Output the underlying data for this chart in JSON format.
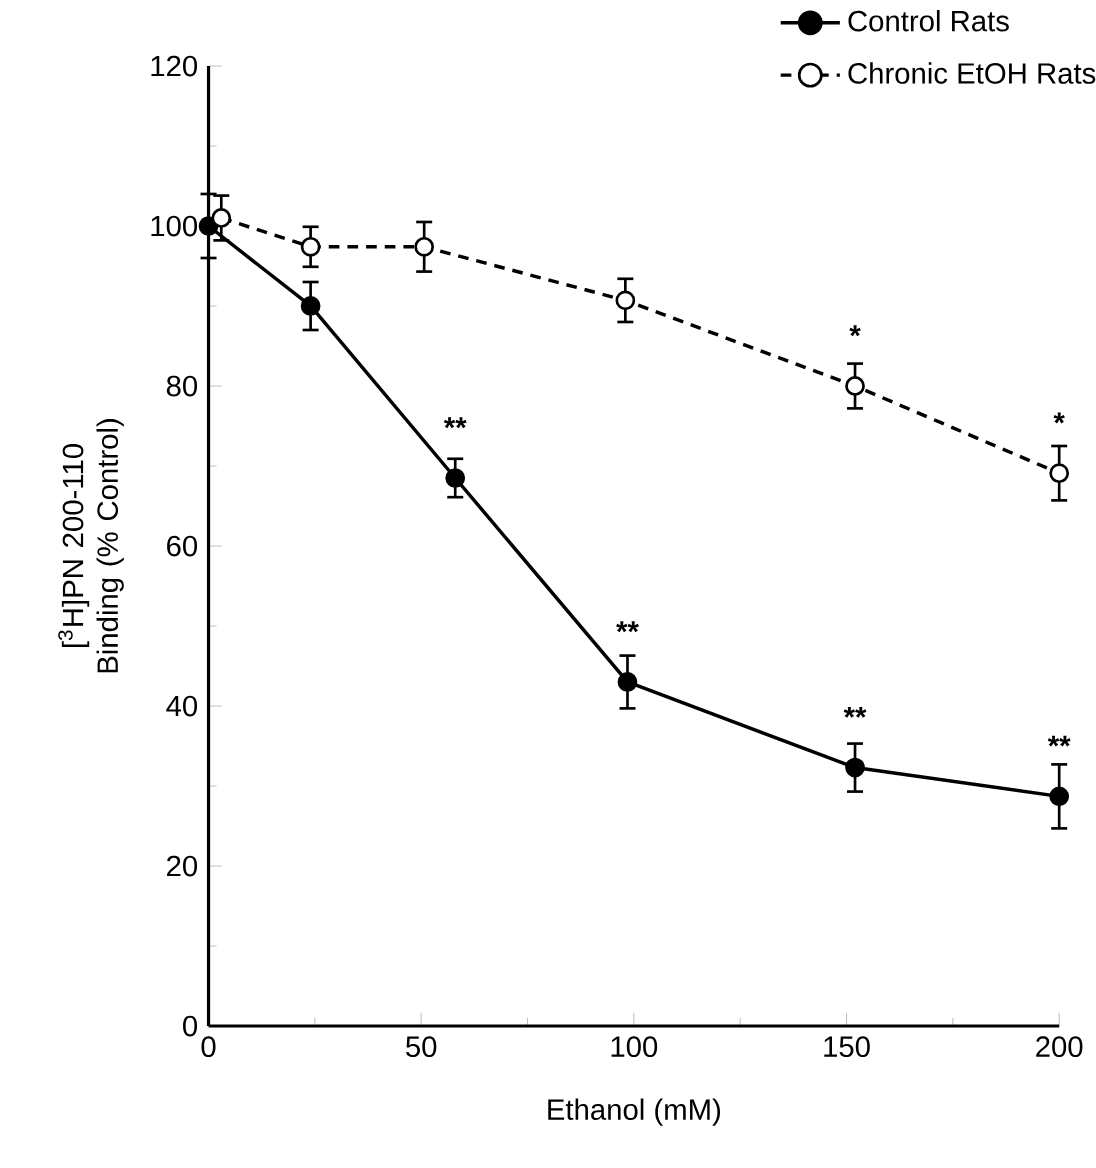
{
  "chart_data": {
    "type": "line",
    "xlabel": "Ethanol  (mM)",
    "ylabel": "[$^{3}$H]PN 200-110 Binding (% Control)",
    "xlim": [
      0,
      200
    ],
    "ylim": [
      0,
      120
    ],
    "xticks": [
      0,
      50,
      100,
      150,
      200
    ],
    "yticks": [
      0,
      20,
      40,
      60,
      80,
      100,
      120
    ],
    "legend": "top right",
    "marker": "circle",
    "grid": false,
    "series": [
      {
        "name": "Control Rats",
        "color": "#000000",
        "line_style": "solid",
        "x": [
          0,
          24,
          58,
          98.5,
          152,
          200
        ],
        "values": [
          100,
          90,
          68.5,
          43,
          32.3,
          28.7
        ],
        "errors": [
          4,
          3,
          2.4,
          3.3,
          3,
          4
        ]
      },
      {
        "name": "Chronic EtOH Rats",
        "color": "#000000",
        "line_style": "dashed",
        "x": [
          3,
          24,
          50.7,
          98,
          152,
          200
        ],
        "values": [
          101,
          97.4,
          97.4,
          90.7,
          80,
          69.1
        ],
        "errors": [
          2.8,
          2.5,
          3.1,
          2.7,
          2.8,
          3.4
        ]
      }
    ],
    "annotations": [
      {
        "text": "**",
        "x": 58,
        "y": 68.5
      },
      {
        "text": "**",
        "x": 98.5,
        "y": 43
      },
      {
        "text": "**",
        "x": 152,
        "y": 32.3
      },
      {
        "text": "**",
        "x": 200,
        "y": 28.7
      },
      {
        "text": "*",
        "x": 152,
        "y": 80
      },
      {
        "text": "*",
        "x": 200,
        "y": 69.1
      }
    ]
  }
}
